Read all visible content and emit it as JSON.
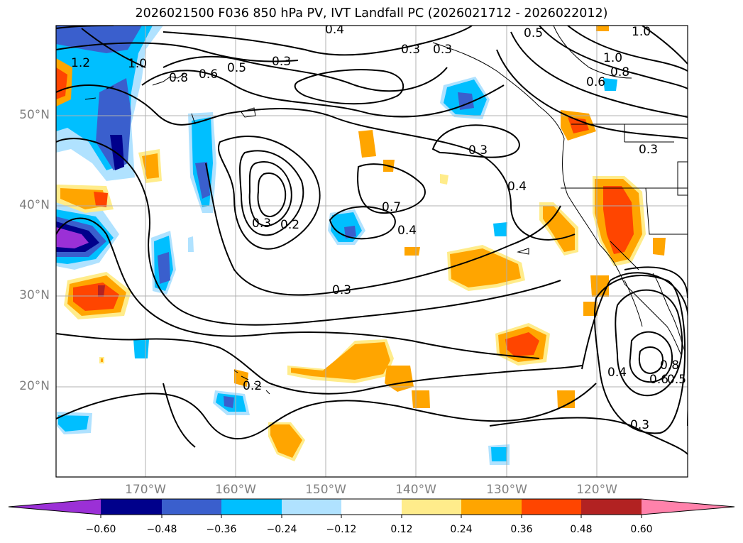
{
  "title": "2026021500 F036 850 hPa PV, IVT Landfall PC (2026021712 - 2026022012)",
  "lat_labels": [
    "50°N",
    "40°N",
    "30°N",
    "20°N"
  ],
  "lon_labels": [
    "170°W",
    "160°W",
    "150°W",
    "140°W",
    "130°W",
    "120°W"
  ],
  "colorbar": {
    "ticks": [
      "−0.60",
      "−0.48",
      "−0.36",
      "−0.24",
      "−0.12",
      "0.12",
      "0.24",
      "0.36",
      "0.48",
      "0.60"
    ],
    "colors": [
      "#9b30d6",
      "#00008b",
      "#3a5fcd",
      "#00bfff",
      "#b0e2ff",
      "#ffffff",
      "#ffec8b",
      "#ffa500",
      "#ff4500",
      "#b22222",
      "#ff82ab"
    ]
  },
  "contour_labels": [
    "1.2",
    "1.0",
    "0.8",
    "0.6",
    "0.5",
    "0.4",
    "0.3",
    "0.3",
    "0.3",
    "0.3",
    "0.7",
    "0.4",
    "0.2",
    "0.3",
    "0.4",
    "1.0",
    "1.0",
    "0.8",
    "0.6",
    "0.5",
    "0.3",
    "0.3",
    "0.2",
    "0.4",
    "0.8",
    "0.6",
    "0.5",
    "0.3"
  ]
}
